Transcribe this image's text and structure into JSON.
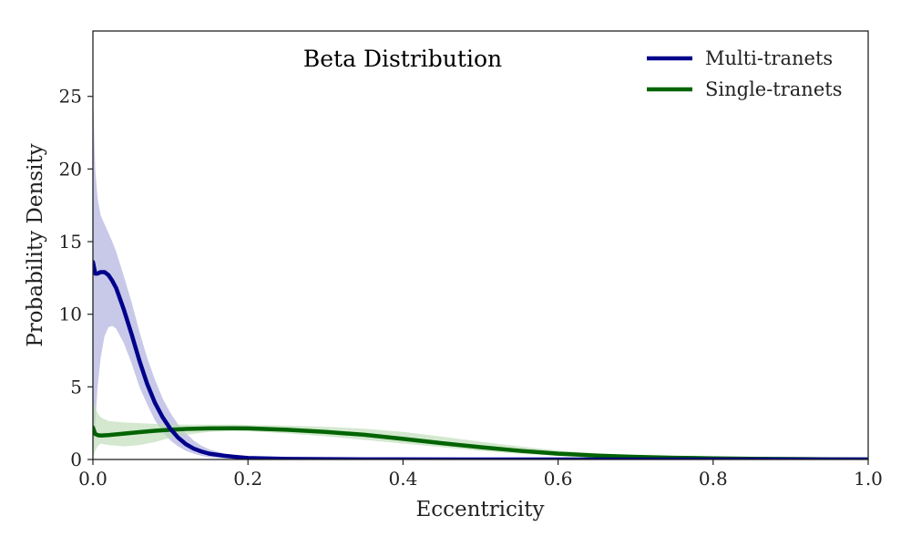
{
  "chart_data": {
    "type": "line",
    "title": "Beta Distribution",
    "xlabel": "Eccentricity",
    "ylabel": "Probability Density",
    "xlim": [
      0,
      1
    ],
    "ylim": [
      0,
      29.5
    ],
    "xticks": [
      0.0,
      0.2,
      0.4,
      0.6,
      0.8,
      1.0
    ],
    "xtick_labels": [
      "0.0",
      "0.2",
      "0.4",
      "0.6",
      "0.8",
      "1.0"
    ],
    "yticks": [
      0,
      5,
      10,
      15,
      20,
      25
    ],
    "ytick_labels": [
      "0",
      "5",
      "10",
      "15",
      "20",
      "25"
    ],
    "grid": false,
    "legend_position": "top-right",
    "series": [
      {
        "name": "Multi-tranets",
        "color": "#00008b",
        "band_color": "#aaaadd",
        "x": [
          0,
          0.003,
          0.006,
          0.01,
          0.015,
          0.02,
          0.025,
          0.03,
          0.04,
          0.05,
          0.06,
          0.07,
          0.08,
          0.09,
          0.1,
          0.11,
          0.12,
          0.13,
          0.14,
          0.15,
          0.17,
          0.2,
          0.25,
          0.3,
          0.35,
          0.4,
          0.5,
          0.6,
          0.8,
          1.0
        ],
        "y": [
          13.6,
          12.8,
          12.8,
          12.9,
          12.9,
          12.7,
          12.3,
          11.8,
          10.3,
          8.6,
          6.8,
          5.2,
          3.9,
          2.9,
          2.1,
          1.5,
          1.05,
          0.75,
          0.55,
          0.4,
          0.25,
          0.1,
          0.04,
          0.02,
          0.01,
          0.005,
          0.002,
          0.001,
          0.0,
          0.0
        ],
        "lower": [
          0.2,
          2.5,
          5.0,
          7.0,
          8.5,
          9.1,
          9.2,
          9.0,
          8.0,
          6.6,
          5.0,
          3.8,
          2.7,
          1.9,
          1.3,
          0.9,
          0.6,
          0.4,
          0.25,
          0.15,
          0.08,
          0.03,
          0.01,
          0.005,
          0.0,
          0.0,
          0.0,
          0.0,
          0.0,
          0.0
        ],
        "upper": [
          25.5,
          20.0,
          18.0,
          16.8,
          16.2,
          15.6,
          15.0,
          14.3,
          12.6,
          10.8,
          8.8,
          7.0,
          5.5,
          4.2,
          3.2,
          2.4,
          1.8,
          1.3,
          0.95,
          0.7,
          0.4,
          0.2,
          0.08,
          0.04,
          0.02,
          0.01,
          0.004,
          0.002,
          0.0,
          0.0
        ]
      },
      {
        "name": "Single-tranets",
        "color": "#006400",
        "band_color": "#bcdcb6",
        "x": [
          0,
          0.003,
          0.006,
          0.01,
          0.02,
          0.04,
          0.06,
          0.08,
          0.1,
          0.12,
          0.15,
          0.18,
          0.2,
          0.25,
          0.3,
          0.35,
          0.4,
          0.45,
          0.5,
          0.55,
          0.6,
          0.65,
          0.7,
          0.75,
          0.8,
          0.85,
          0.9,
          0.95,
          1.0
        ],
        "y": [
          2.2,
          1.75,
          1.68,
          1.65,
          1.68,
          1.78,
          1.88,
          1.98,
          2.05,
          2.1,
          2.14,
          2.15,
          2.14,
          2.05,
          1.9,
          1.7,
          1.42,
          1.12,
          0.85,
          0.6,
          0.4,
          0.27,
          0.18,
          0.12,
          0.08,
          0.05,
          0.03,
          0.01,
          0.0
        ],
        "lower": [
          0.2,
          0.6,
          0.9,
          1.1,
          1.0,
          0.9,
          1.0,
          1.2,
          1.5,
          1.7,
          1.9,
          1.95,
          1.95,
          1.8,
          1.6,
          1.35,
          1.1,
          0.85,
          0.6,
          0.4,
          0.25,
          0.15,
          0.1,
          0.06,
          0.04,
          0.02,
          0.01,
          0.0,
          0.0
        ],
        "upper": [
          4.3,
          3.6,
          3.2,
          2.9,
          2.65,
          2.55,
          2.5,
          2.45,
          2.42,
          2.4,
          2.4,
          2.4,
          2.38,
          2.33,
          2.25,
          2.12,
          1.9,
          1.58,
          1.22,
          0.9,
          0.62,
          0.42,
          0.28,
          0.19,
          0.13,
          0.08,
          0.05,
          0.02,
          0.0
        ]
      }
    ]
  }
}
